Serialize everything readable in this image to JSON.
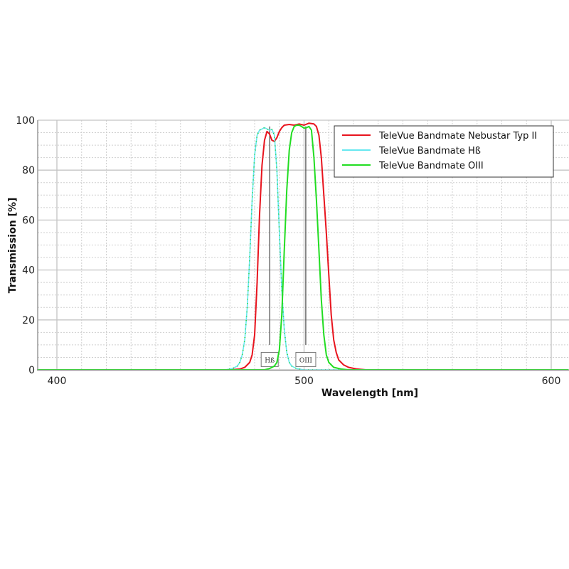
{
  "chart_data": {
    "type": "line",
    "title": "",
    "xlabel": "Wavelength [nm]",
    "ylabel": "Transmission [%]",
    "xlim": [
      392,
      607
    ],
    "ylim": [
      0,
      100
    ],
    "x_ticks": [
      400,
      500,
      600
    ],
    "y_ticks": [
      0,
      20,
      40,
      60,
      80,
      100
    ],
    "grid": {
      "major": true,
      "minor": true,
      "minor_x_step": 10,
      "minor_y_step": 5
    },
    "legend_position": "upper right",
    "legend": [
      "TeleVue Bandmate Nebustar Typ II",
      "TeleVue Bandmate Hß",
      "TeleVue Bandmate OIII"
    ],
    "annotations": [
      {
        "label": "Hß",
        "x": 486.1
      },
      {
        "label": "OIII",
        "x": 500.7
      }
    ],
    "series": [
      {
        "name": "TeleVue Bandmate Nebustar Typ II",
        "color": "#e8141e",
        "points": [
          [
            392,
            0
          ],
          [
            470,
            0
          ],
          [
            474,
            0.3
          ],
          [
            476,
            1
          ],
          [
            478,
            3
          ],
          [
            479,
            6
          ],
          [
            480,
            14
          ],
          [
            481,
            35
          ],
          [
            482,
            62
          ],
          [
            483,
            82
          ],
          [
            484,
            92
          ],
          [
            485,
            95.5
          ],
          [
            486,
            94.5
          ],
          [
            487,
            92
          ],
          [
            488,
            91.5
          ],
          [
            489,
            93
          ],
          [
            490,
            95.5
          ],
          [
            491,
            97
          ],
          [
            492,
            98
          ],
          [
            494,
            98.3
          ],
          [
            496,
            98
          ],
          [
            498,
            98.5
          ],
          [
            500,
            98
          ],
          [
            502,
            98.8
          ],
          [
            504,
            98.5
          ],
          [
            505,
            97.5
          ],
          [
            506,
            94
          ],
          [
            507,
            85
          ],
          [
            508,
            70
          ],
          [
            509,
            55
          ],
          [
            510,
            38
          ],
          [
            511,
            22
          ],
          [
            512,
            12
          ],
          [
            513,
            7
          ],
          [
            514,
            4
          ],
          [
            516,
            2
          ],
          [
            518,
            1
          ],
          [
            521,
            0.4
          ],
          [
            525,
            0
          ],
          [
            607,
            0
          ]
        ]
      },
      {
        "name": "TeleVue Bandmate Hß",
        "color": "#66e8f0",
        "points": [
          [
            392,
            0
          ],
          [
            468,
            0
          ],
          [
            471,
            0.5
          ],
          [
            473,
            1.5
          ],
          [
            474,
            3
          ],
          [
            475,
            6
          ],
          [
            476,
            12
          ],
          [
            477,
            25
          ],
          [
            478,
            45
          ],
          [
            479,
            68
          ],
          [
            480,
            86
          ],
          [
            481,
            94
          ],
          [
            482,
            96
          ],
          [
            483,
            96.5
          ],
          [
            484,
            97
          ],
          [
            485,
            96.5
          ],
          [
            486,
            96
          ],
          [
            487,
            96.3
          ],
          [
            488,
            94
          ],
          [
            489,
            80
          ],
          [
            490,
            55
          ],
          [
            491,
            32
          ],
          [
            492,
            16
          ],
          [
            493,
            7
          ],
          [
            494,
            3
          ],
          [
            495,
            1.5
          ],
          [
            497,
            0.5
          ],
          [
            500,
            0
          ],
          [
            607,
            0
          ]
        ]
      },
      {
        "name": "TeleVue Bandmate OIII",
        "color": "#22dd22",
        "points": [
          [
            392,
            0
          ],
          [
            484,
            0
          ],
          [
            486,
            0.5
          ],
          [
            488,
            1.5
          ],
          [
            489,
            3
          ],
          [
            490,
            8
          ],
          [
            491,
            22
          ],
          [
            492,
            48
          ],
          [
            493,
            72
          ],
          [
            494,
            88
          ],
          [
            495,
            95
          ],
          [
            496,
            97.5
          ],
          [
            497,
            98
          ],
          [
            498,
            98
          ],
          [
            499,
            97.5
          ],
          [
            500,
            96.8
          ],
          [
            501,
            97
          ],
          [
            502,
            97.5
          ],
          [
            503,
            96
          ],
          [
            504,
            85
          ],
          [
            505,
            68
          ],
          [
            506,
            48
          ],
          [
            507,
            28
          ],
          [
            508,
            14
          ],
          [
            509,
            6
          ],
          [
            510,
            3
          ],
          [
            512,
            1
          ],
          [
            515,
            0.3
          ],
          [
            518,
            0
          ],
          [
            607,
            0
          ]
        ]
      }
    ]
  }
}
